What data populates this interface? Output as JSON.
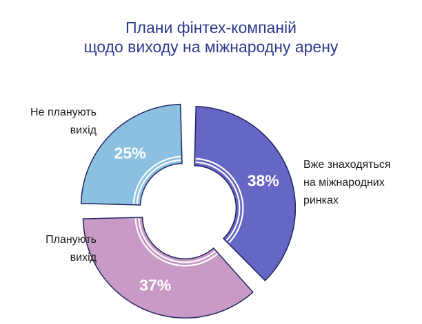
{
  "chart_data": {
    "type": "pie",
    "title_lines": [
      "Плани фінтех-компаній",
      "щодо виходу на міжнародну арену"
    ],
    "slices": [
      {
        "label_lines": [
          "Вже знаходяться",
          "на міжнародних",
          "ринках"
        ],
        "value": 38,
        "value_label": "38%",
        "color": "#6666c4"
      },
      {
        "label_lines": [
          "Планують",
          "вихід"
        ],
        "value": 37,
        "value_label": "37%",
        "color": "#c99ac6"
      },
      {
        "label_lines": [
          "Не планують",
          "вихід"
        ],
        "value": 25,
        "value_label": "25%",
        "color": "#8cc0e0"
      }
    ],
    "outline_color": "#1e2560"
  }
}
